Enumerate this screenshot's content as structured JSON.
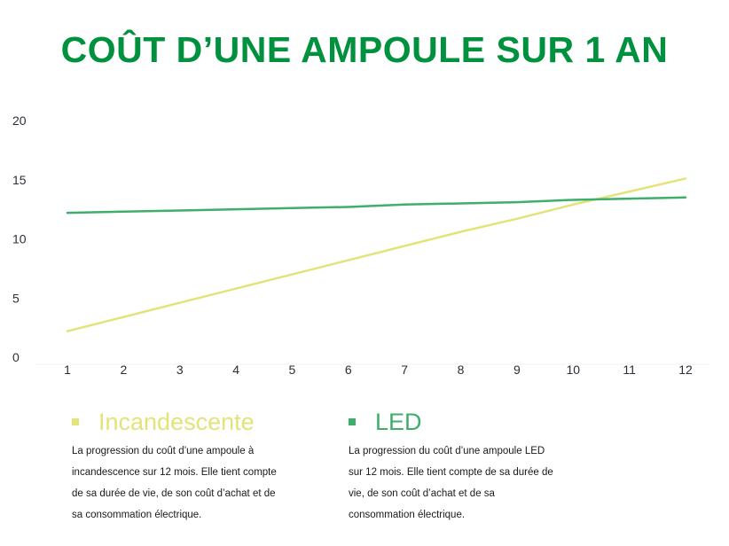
{
  "title": "COÛT D’UNE AMPOULE SUR 1 AN",
  "colors": {
    "title": "#00913f",
    "incandescent": "#e3e37a",
    "led": "#3fae6a",
    "grid": "#f0f0f0"
  },
  "chart_data": {
    "type": "line",
    "x": [
      1,
      2,
      3,
      4,
      5,
      6,
      7,
      8,
      9,
      10,
      11,
      12
    ],
    "ylim": [
      0,
      20
    ],
    "yticks": [
      0,
      5,
      10,
      15,
      20
    ],
    "xlabel": "",
    "ylabel": "",
    "grid": false,
    "series": [
      {
        "name": "Incandescente",
        "values": [
          2.2,
          3.4,
          4.6,
          5.8,
          7.0,
          8.2,
          9.4,
          10.6,
          11.7,
          12.9,
          14.0,
          15.1
        ]
      },
      {
        "name": "LED",
        "values": [
          12.2,
          12.3,
          12.4,
          12.5,
          12.6,
          12.7,
          12.9,
          13.0,
          13.1,
          13.3,
          13.4,
          13.5
        ]
      }
    ]
  },
  "legend": [
    {
      "name": "Incandescente",
      "description": [
        "La progression du coût d’une ampoule à",
        "incandescence sur 12 mois. Elle tient compte",
        "de sa durée de vie, de son coût d’achat et de",
        "sa consommation électrique."
      ]
    },
    {
      "name": "LED",
      "description": [
        "La progression du coût d’une ampoule LED",
        "sur 12 mois. Elle tient compte de sa durée de",
        "vie, de son coût d’achat et de sa",
        "consommation électrique."
      ]
    }
  ]
}
